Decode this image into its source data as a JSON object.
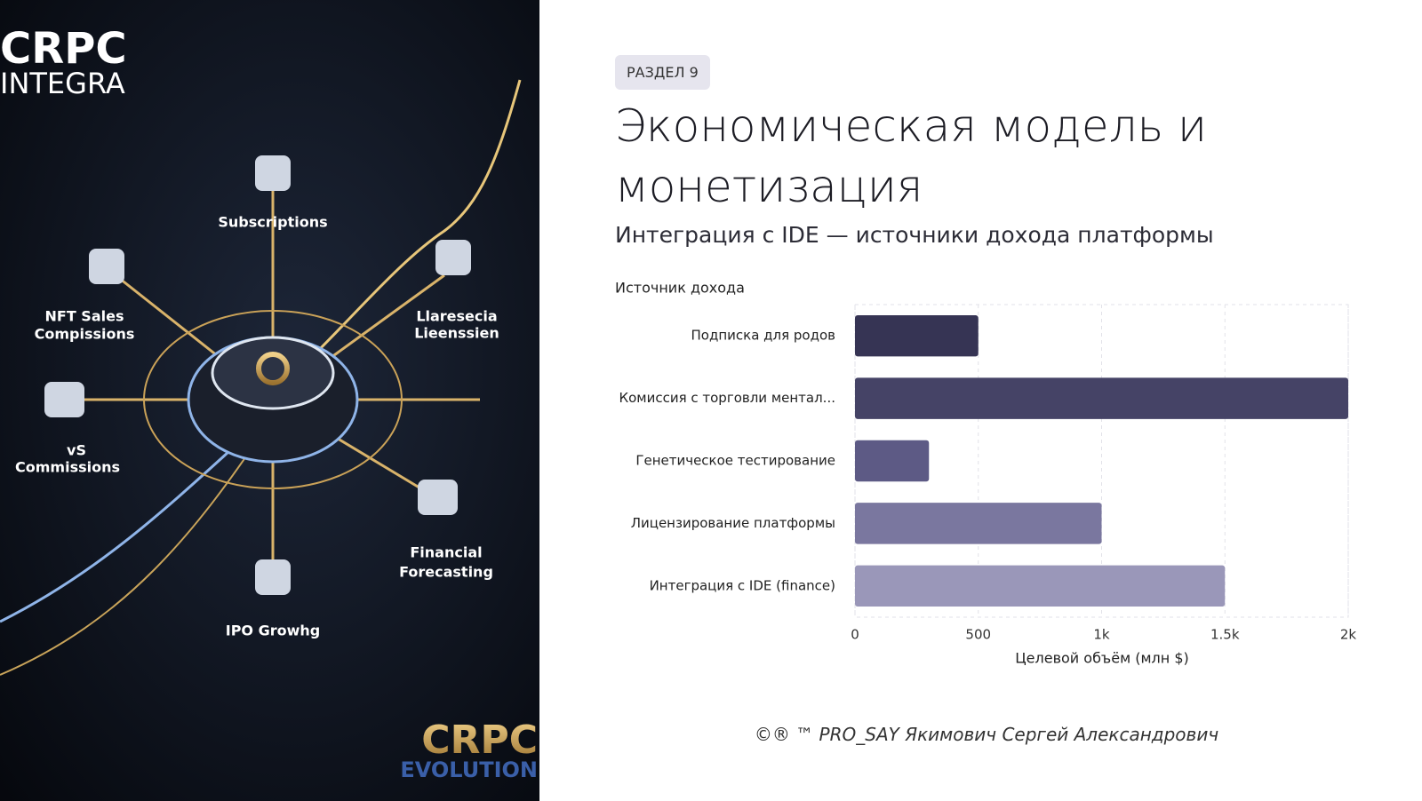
{
  "image": {
    "brand_top": [
      "CRPC",
      "INTEGRA"
    ],
    "labels": [
      "Subscriptions",
      "NFT Sales",
      "Compissions",
      "Llaresecia",
      "Lieenssien",
      "vS",
      "Commissions",
      "Financial",
      "Forecasting",
      "IPO Growhg"
    ],
    "brand_bottom": [
      "CRPC",
      "EVOLUTION"
    ]
  },
  "badge": "РАЗДЕЛ 9",
  "title": "Экономическая модель и монетизация",
  "subtitle": "Интеграция с IDE — источники дохода платформы",
  "chart_data": {
    "type": "barh",
    "ylabel": "Источник дохода",
    "xlabel": "Целевой объём (млн $)",
    "categories": [
      "Подписка для родов",
      "Комиссия с торговли ментал...",
      "Генетическое тестирование",
      "Лицензирование платформы",
      "Интеграция с IDE (finance)"
    ],
    "values": [
      500,
      2000,
      300,
      1000,
      1500
    ],
    "colors": [
      "#363454",
      "#454366",
      "#5d5a85",
      "#7a779f",
      "#9a97b9"
    ],
    "xlim": [
      0,
      2000
    ],
    "xticks": [
      0,
      500,
      {
        "value": 1000,
        "label": "1k"
      },
      {
        "value": 1500,
        "label": "1.5k"
      },
      {
        "value": 2000,
        "label": "2k"
      }
    ],
    "grid": true
  },
  "footer": "©® ™ PRO_SAY Якимович Сергей Александрович"
}
